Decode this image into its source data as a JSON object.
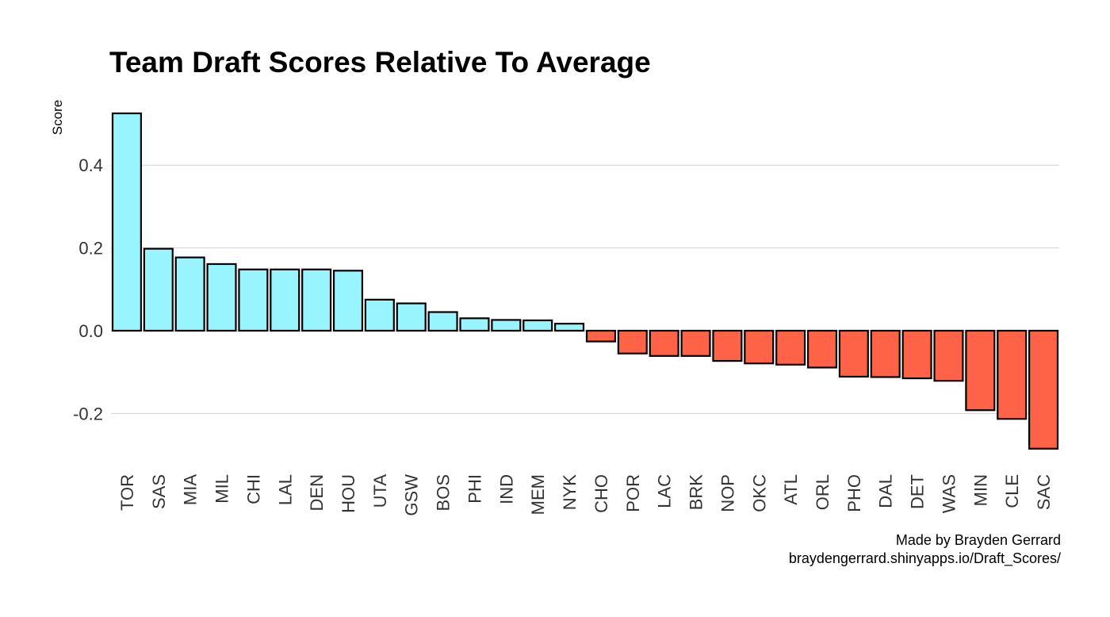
{
  "chart_data": {
    "type": "bar",
    "title": "Team Draft Scores Relative To Average",
    "xlabel": "",
    "ylabel": "Score",
    "ylim": [
      -0.29,
      0.54
    ],
    "yticks": [
      -0.2,
      0.0,
      0.2,
      0.4
    ],
    "ytick_labels": [
      "-0.2",
      "0.0",
      "0.2",
      "0.4"
    ],
    "grid": "horizontal",
    "legend": "none",
    "positive_color": "#98F5FF",
    "negative_color": "#FF6347",
    "bar_outline_color": "#000000",
    "categories": [
      "TOR",
      "SAS",
      "MIA",
      "MIL",
      "CHI",
      "LAL",
      "DEN",
      "HOU",
      "UTA",
      "GSW",
      "BOS",
      "PHI",
      "IND",
      "MEM",
      "NYK",
      "CHO",
      "POR",
      "LAC",
      "BRK",
      "NOP",
      "OKC",
      "ATL",
      "ORL",
      "PHO",
      "DAL",
      "DET",
      "WAS",
      "MIN",
      "CLE",
      "SAC"
    ],
    "values": [
      0.525,
      0.198,
      0.177,
      0.161,
      0.148,
      0.148,
      0.148,
      0.145,
      0.075,
      0.066,
      0.045,
      0.03,
      0.026,
      0.025,
      0.017,
      -0.026,
      -0.055,
      -0.061,
      -0.061,
      -0.073,
      -0.079,
      -0.082,
      -0.089,
      -0.111,
      -0.112,
      -0.115,
      -0.121,
      -0.192,
      -0.213,
      -0.285
    ]
  },
  "caption": {
    "line1": "Made by Brayden Gerrard ",
    "line2": "braydengerrard.shinyapps.io/Draft_Scores/"
  }
}
